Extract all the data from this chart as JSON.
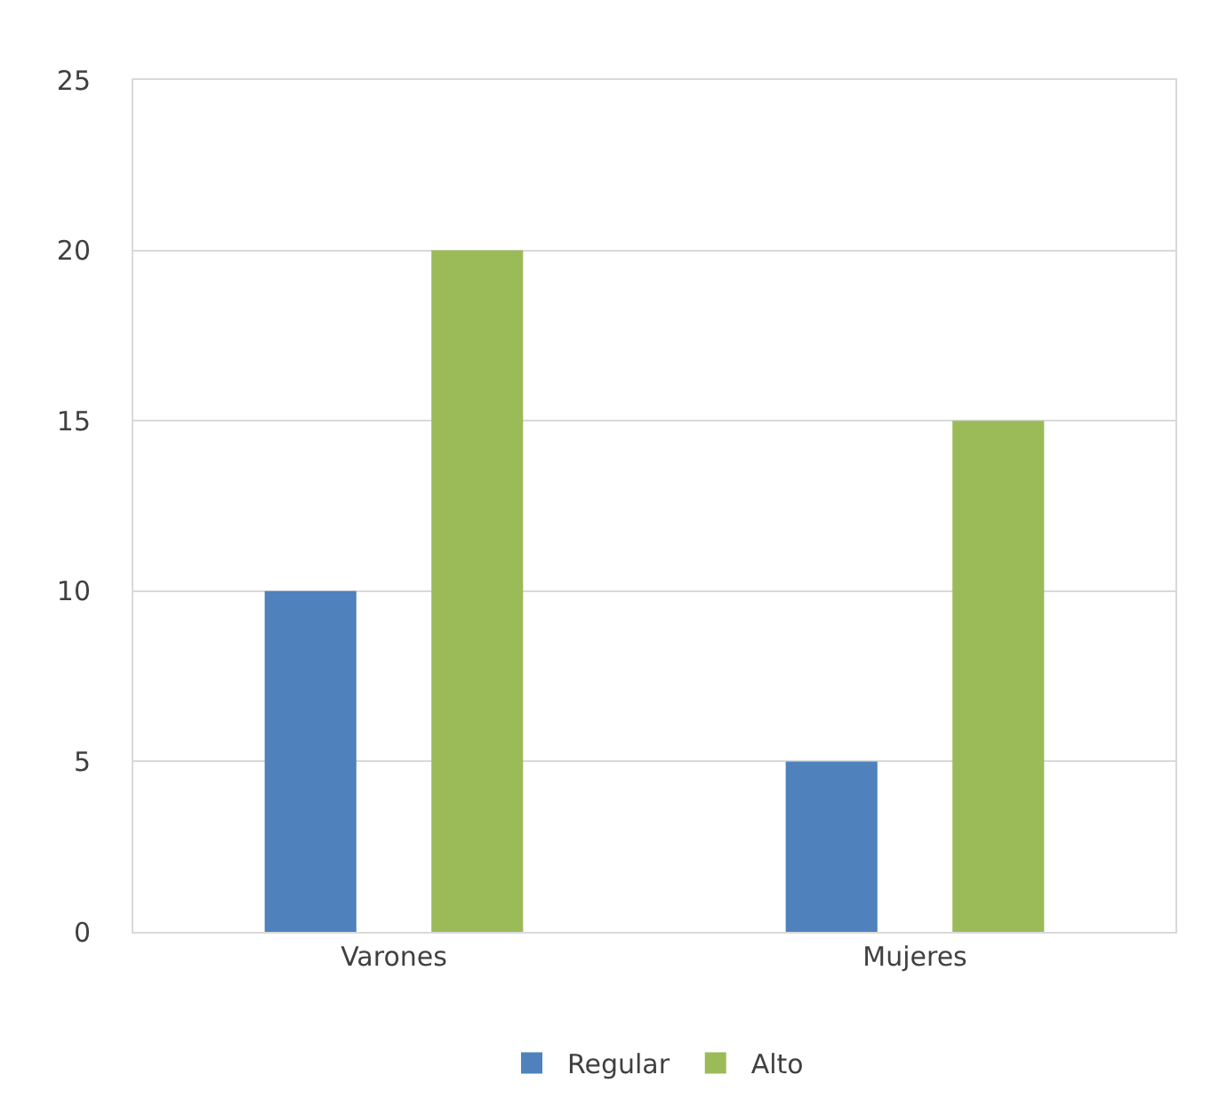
{
  "chart_data": {
    "type": "bar",
    "categories": [
      "Varones",
      "Mujeres"
    ],
    "series": [
      {
        "name": "Regular",
        "color": "#4f81bd",
        "values": [
          10,
          5
        ]
      },
      {
        "name": "Alto",
        "color": "#9bbb59",
        "values": [
          20,
          15
        ]
      }
    ],
    "ylim": [
      0,
      25
    ],
    "yticks": [
      0,
      5,
      10,
      15,
      20,
      25
    ],
    "grid": "y",
    "legend": "bottom"
  }
}
